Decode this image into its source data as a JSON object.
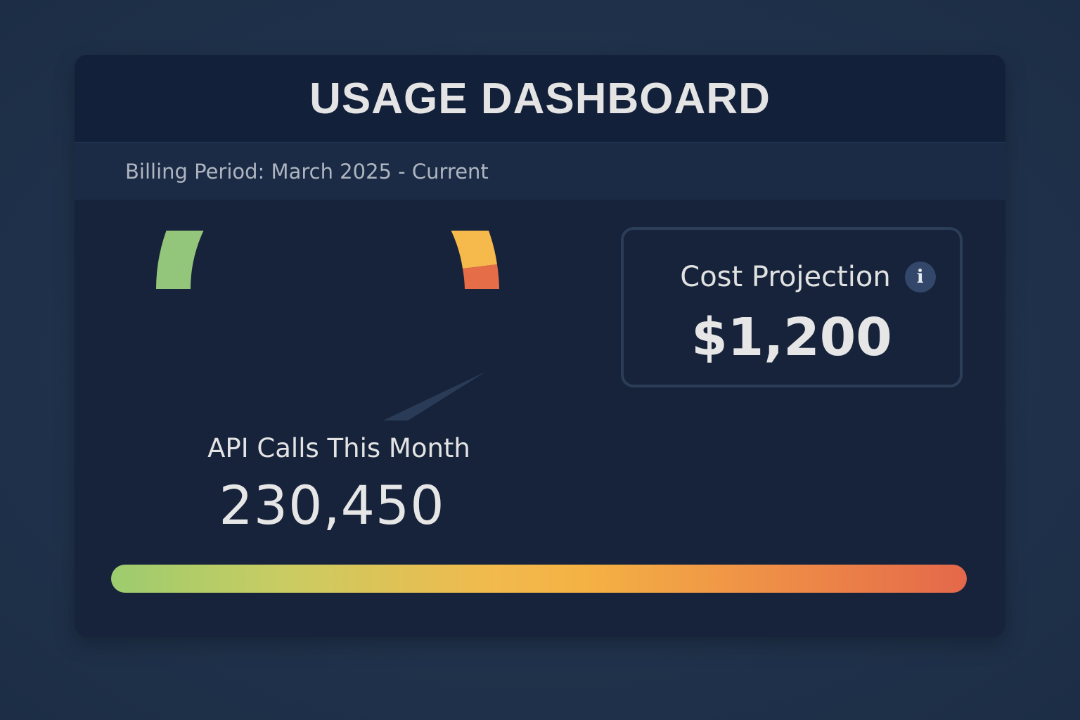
{
  "header": {
    "title": "USAGE DASHBOARD"
  },
  "billing": {
    "period_text": "Billing Period: March 2025 - Current"
  },
  "api_calls": {
    "label": "API Calls This Month",
    "value": "230,450",
    "gauge_level_percent": 71
  },
  "cost_projection": {
    "title": "Cost Projection",
    "value": "$1,200",
    "info_icon": "info-icon"
  },
  "usage_bar": {
    "gradient_colors": [
      "#9ccc6e",
      "#f2b94c",
      "#e4684a"
    ]
  },
  "colors": {
    "gauge_green": "#93c57a",
    "gauge_yellow": "#f6b94c",
    "gauge_red": "#e56d47",
    "needle": "#2a3b57"
  }
}
